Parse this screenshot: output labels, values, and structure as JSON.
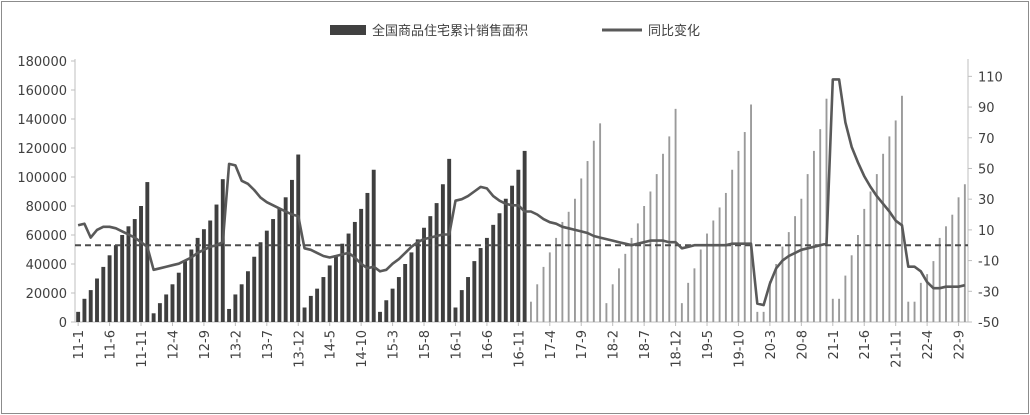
{
  "chart_data": {
    "type": "bar+line",
    "title": "",
    "legend": {
      "placement": "top-center",
      "entries": [
        {
          "name": "全国商品住宅累计销售面积",
          "marker": "bar",
          "color": "#404040"
        },
        {
          "name": "同比变化",
          "marker": "line",
          "color": "#595959"
        }
      ]
    },
    "x": {
      "tick_labels": [
        "11-1",
        "11-6",
        "11-11",
        "12-4",
        "12-9",
        "13-2",
        "13-7",
        "13-12",
        "14-5",
        "14-10",
        "15-3",
        "15-8",
        "16-1",
        "16-6",
        "16-11",
        "17-4",
        "17-9",
        "18-2",
        "18-7",
        "18-12",
        "19-5",
        "19-10",
        "20-3",
        "20-8",
        "21-1",
        "21-6",
        "21-11",
        "22-4",
        "22-9"
      ],
      "start": "2011-01",
      "end": "2022-10"
    },
    "y_left": {
      "range": [
        0,
        180000
      ],
      "ticks": [
        0,
        20000,
        40000,
        60000,
        80000,
        100000,
        120000,
        140000,
        160000,
        180000
      ]
    },
    "y_right": {
      "range": [
        -50,
        120
      ],
      "ticks": [
        -50,
        -30,
        -10,
        10,
        30,
        50,
        70,
        90,
        110
      ]
    },
    "reference_line": {
      "axis": "right",
      "value": 0,
      "style": "dashed"
    },
    "series": [
      {
        "name": "全国商品住宅累计销售面积",
        "type": "bar",
        "axis": "left",
        "style_by_period": [
          {
            "until": "2016-12",
            "style": "thick-dark"
          },
          {
            "from": "2017-01",
            "style": "thin-grey"
          }
        ],
        "years": {
          "2011": [
            7000,
            16000,
            22000,
            30000,
            38000,
            46000,
            53000,
            60000,
            66000,
            71000,
            80000,
            96500
          ],
          "2012": [
            6000,
            13000,
            19000,
            26000,
            34000,
            42000,
            50000,
            58000,
            64000,
            70000,
            81000,
            98500
          ],
          "2013": [
            9000,
            19000,
            26000,
            35000,
            45000,
            55000,
            63000,
            71000,
            78000,
            86000,
            98000,
            115500
          ],
          "2014": [
            10000,
            18000,
            23000,
            31000,
            39000,
            46000,
            54000,
            61000,
            69000,
            78000,
            89000,
            105000
          ],
          "2015": [
            7000,
            15000,
            23000,
            31000,
            40000,
            48000,
            57000,
            65000,
            73000,
            82000,
            95000,
            112500
          ],
          "2016": [
            10000,
            22000,
            31000,
            42000,
            51000,
            58000,
            67000,
            75000,
            85000,
            94000,
            105000,
            118000
          ],
          "2017": [
            14000,
            26000,
            38000,
            48000,
            58000,
            69000,
            76000,
            85000,
            99000,
            111000,
            125000,
            137000
          ],
          "2018": [
            13000,
            26000,
            37000,
            47000,
            58000,
            68000,
            80000,
            90000,
            102000,
            116000,
            128000,
            147000
          ],
          "2019": [
            13000,
            27000,
            37000,
            50000,
            61000,
            70000,
            79000,
            89000,
            105000,
            118000,
            131000,
            150000
          ],
          "2020": [
            7000,
            7000,
            28000,
            40000,
            52000,
            62000,
            73000,
            85000,
            102000,
            118000,
            133000,
            154000
          ],
          "2021": [
            16000,
            16000,
            32000,
            46000,
            60000,
            78000,
            90000,
            102000,
            116000,
            128000,
            139000,
            156000
          ],
          "2022": [
            14000,
            14000,
            27000,
            33000,
            42000,
            58000,
            66000,
            74000,
            86000,
            95000
          ]
        }
      },
      {
        "name": "同比变化",
        "type": "line",
        "axis": "right",
        "values_by_year": {
          "2011": [
            13,
            14,
            5,
            10,
            12,
            12,
            11,
            9,
            7,
            5,
            2,
            -1
          ],
          "2012": [
            -16,
            -15,
            -14,
            -13,
            -12,
            -10,
            -8,
            -5,
            -3,
            -1,
            0,
            2
          ],
          "2013": [
            53,
            52,
            42,
            40,
            36,
            31,
            28,
            26,
            24,
            22,
            20,
            19
          ],
          "2014": [
            -2,
            -3,
            -5,
            -7,
            -8,
            -7,
            -6,
            -5,
            -8,
            -12,
            -15,
            -14
          ],
          "2015": [
            -17,
            -16,
            -12,
            -9,
            -5,
            -1,
            2,
            4,
            5,
            6,
            7,
            7
          ],
          "2016": [
            29,
            30,
            32,
            35,
            38,
            37,
            32,
            29,
            27,
            26,
            26,
            22
          ],
          "2017": [
            22,
            20,
            17,
            15,
            14,
            12,
            11,
            10,
            9,
            8,
            6,
            5
          ],
          "2018": [
            4,
            3,
            2,
            1,
            0,
            1,
            2,
            3,
            3,
            3,
            2,
            2
          ],
          "2019": [
            -2,
            -1,
            0,
            0,
            0,
            0,
            0,
            0,
            1,
            1,
            1,
            1
          ],
          "2020": [
            -38,
            -39,
            -25,
            -15,
            -10,
            -7,
            -5,
            -3,
            -2,
            -1,
            0,
            1
          ],
          "2021": [
            108,
            108,
            80,
            64,
            54,
            45,
            38,
            32,
            27,
            22,
            16,
            13
          ],
          "2022": [
            -14,
            -14,
            -17,
            -24,
            -28,
            -28,
            -27,
            -27,
            -27,
            -26
          ]
        }
      }
    ]
  }
}
